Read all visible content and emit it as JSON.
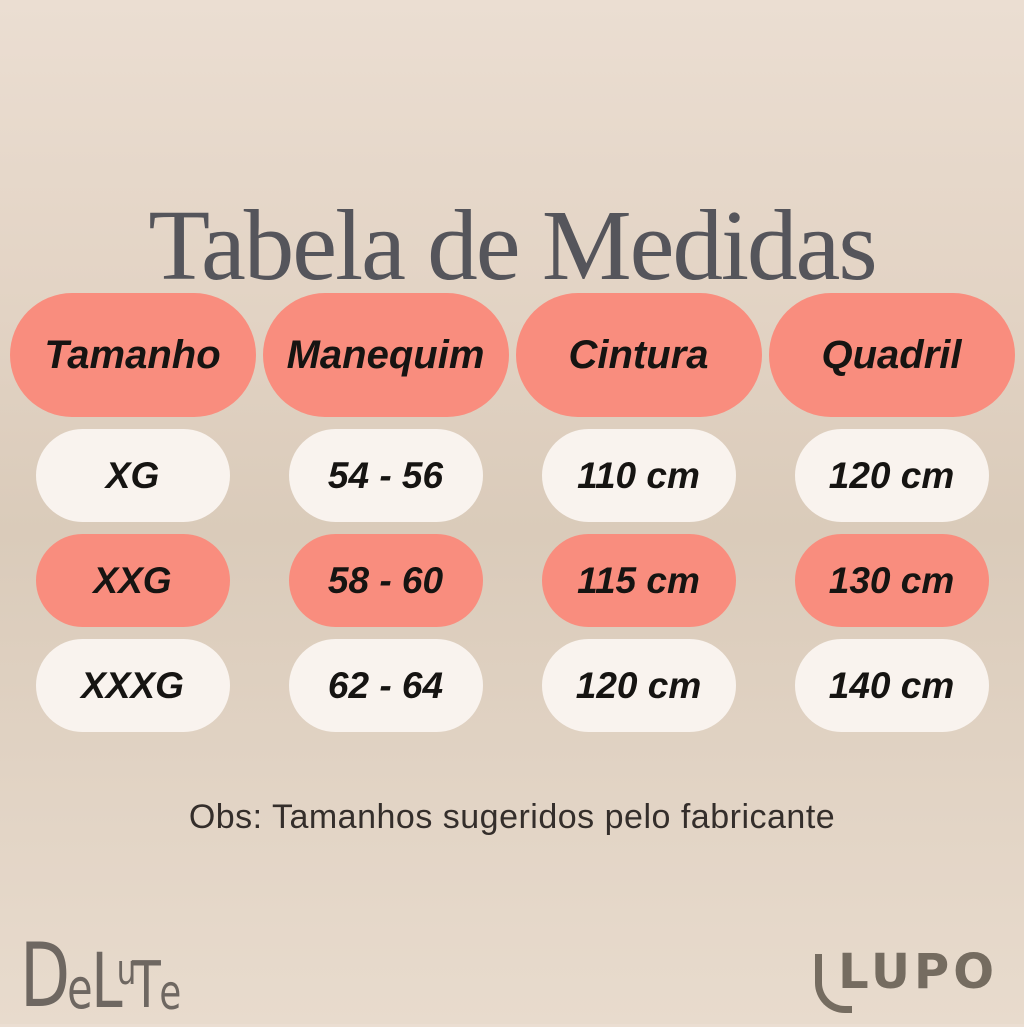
{
  "title": "Tabela de Medidas",
  "chart_data": {
    "type": "table",
    "title": "Tabela de Medidas",
    "columns": [
      "Tamanho",
      "Manequim",
      "Cintura",
      "Quadril"
    ],
    "rows": [
      [
        "XG",
        "54 - 56",
        "110 cm",
        "120 cm"
      ],
      [
        "XXG",
        "58 - 60",
        "115 cm",
        "130 cm"
      ],
      [
        "XXXG",
        "62 - 64",
        "120 cm",
        "140 cm"
      ]
    ],
    "highlighted_row_index": 1,
    "note": "Obs: Tamanhos sugeridos pelo fabricante"
  },
  "note": "Obs: Tamanhos sugeridos pelo fabricante",
  "brands": {
    "left": "DeLuTe",
    "left_letters": {
      "d": "D",
      "e1": "e",
      "l": "L",
      "u": "u",
      "t": "T",
      "e2": "e"
    },
    "right": "LUPO"
  },
  "colors": {
    "background_beige": "#e2d3c4",
    "accent_salmon": "#f98d7e",
    "pill_cream": "#f9f3ee",
    "title_gray": "#55555b",
    "text_black": "#161412",
    "delute_gray": "#6e6761",
    "lupo_taupe": "#756c60"
  }
}
